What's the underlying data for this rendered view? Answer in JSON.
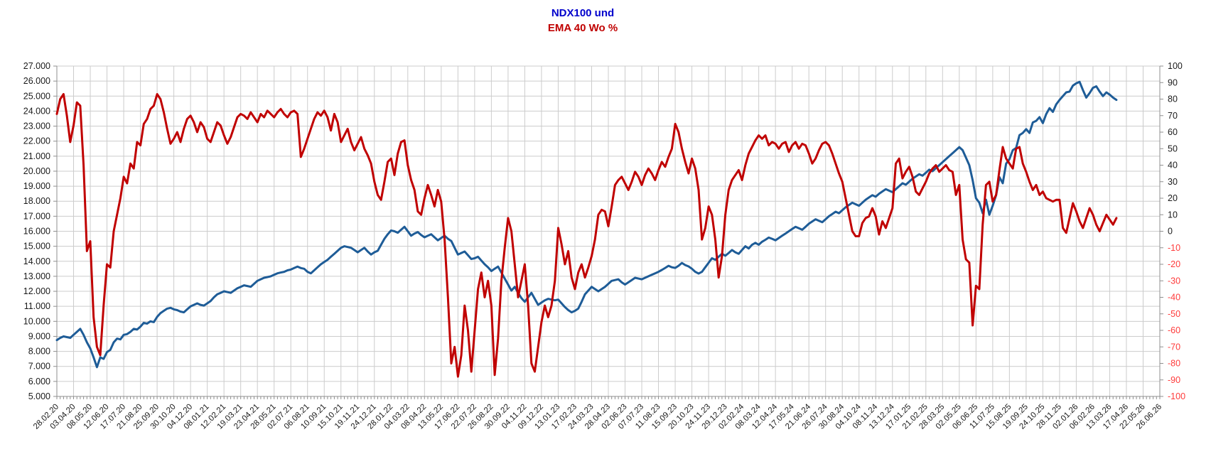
{
  "title": {
    "line1": "NDX100 und",
    "line2": "EMA 40 Wo %"
  },
  "colors": {
    "title_line1": "#0000cc",
    "title_line2": "#c00000",
    "ndx_line": "#1e5c97",
    "ema_line": "#c00000",
    "gridline": "#cccccc",
    "axis_line": "#8f8f8f",
    "tick_label": "#1a1a1a",
    "negative_tick_label": "#ff3b3b",
    "background": "#ffffff"
  },
  "chart_data": {
    "type": "line",
    "title": "NDX100 und EMA 40 Wo %",
    "grid": true,
    "legend": "none",
    "total_weeks": 330,
    "weeks_per_label": 5,
    "left_axis": {
      "min": 5000,
      "max": 27000,
      "step": 1000,
      "labels": [
        "27.000",
        "26.000",
        "25.000",
        "24.000",
        "23.000",
        "22.000",
        "21.000",
        "20.000",
        "19.000",
        "18.000",
        "17.000",
        "16.000",
        "15.000",
        "14.000",
        "13.000",
        "12.000",
        "11.000",
        "10.000",
        "9.000",
        "8.000",
        "7.000",
        "6.000",
        "5.000"
      ]
    },
    "right_axis": {
      "min": -100,
      "max": 100,
      "step": 10,
      "labels": [
        "100",
        "90",
        "80",
        "70",
        "60",
        "50",
        "40",
        "30",
        "20",
        "10",
        "0",
        "-10",
        "-20",
        "-30",
        "-40",
        "-50",
        "-60",
        "-70",
        "-80",
        "-90",
        "-100"
      ]
    },
    "x_tick_labels": [
      "28.02.20",
      "03.04.20",
      "08.05.20",
      "12.06.20",
      "17.07.20",
      "21.08.20",
      "25.09.20",
      "30.10.20",
      "04.12.20",
      "08.01.21",
      "12.02.21",
      "19.03.21",
      "23.04.21",
      "28.05.21",
      "02.07.21",
      "06.08.21",
      "10.09.21",
      "15.10.21",
      "19.11.21",
      "24.12.21",
      "28.01.22",
      "04.03.22",
      "08.04.22",
      "13.05.22",
      "17.06.22",
      "22.07.22",
      "26.08.22",
      "30.09.22",
      "04.11.22",
      "09.12.22",
      "13.01.23",
      "17.02.23",
      "24.03.23",
      "28.04.23",
      "02.06.23",
      "07.07.23",
      "11.08.23",
      "15.09.23",
      "20.10.23",
      "24.11.23",
      "29.12.23",
      "02.02.24",
      "08.03.24",
      "12.04.24",
      "17.05.24",
      "21.06.24",
      "26.07.24",
      "30.08.24",
      "04.10.24",
      "08.11.24",
      "13.12.24",
      "17.01.25",
      "21.02.25",
      "28.03.25",
      "02.05.25",
      "06.06.25",
      "11.07.25",
      "15.08.25",
      "19.09.25",
      "24.10.25",
      "28.11.25",
      "02.01.26",
      "06.02.26",
      "13.03.26",
      "17.04.26",
      "22.05.26",
      "26.06.26"
    ],
    "series": [
      {
        "name": "NDX100",
        "axis": "left",
        "color": "#1e5c97",
        "stroke_width": 3,
        "values": [
          8750,
          8900,
          9000,
          8950,
          8900,
          9100,
          9300,
          9500,
          9100,
          8600,
          8200,
          7600,
          6950,
          7600,
          7500,
          7950,
          8100,
          8600,
          8850,
          8800,
          9100,
          9150,
          9300,
          9500,
          9450,
          9650,
          9900,
          9850,
          10000,
          9950,
          10300,
          10550,
          10700,
          10850,
          10900,
          10800,
          10750,
          10650,
          10600,
          10800,
          11000,
          11100,
          11200,
          11100,
          11050,
          11200,
          11350,
          11600,
          11800,
          11900,
          12000,
          11950,
          11900,
          12050,
          12200,
          12300,
          12400,
          12350,
          12300,
          12500,
          12700,
          12800,
          12900,
          12950,
          13000,
          13100,
          13200,
          13250,
          13300,
          13400,
          13450,
          13550,
          13650,
          13550,
          13500,
          13300,
          13200,
          13400,
          13600,
          13800,
          13950,
          14100,
          14300,
          14500,
          14700,
          14900,
          15000,
          14950,
          14900,
          14750,
          14600,
          14750,
          14900,
          14650,
          14450,
          14600,
          14700,
          15100,
          15500,
          15800,
          16050,
          16000,
          15900,
          16100,
          16300,
          16000,
          15700,
          15850,
          15950,
          15750,
          15600,
          15700,
          15800,
          15600,
          15400,
          15550,
          15700,
          15500,
          15350,
          14900,
          14450,
          14550,
          14650,
          14400,
          14150,
          14200,
          14300,
          14050,
          13800,
          13600,
          13350,
          13500,
          13650,
          13250,
          12850,
          12450,
          12050,
          12300,
          11900,
          11550,
          11300,
          11600,
          11900,
          11500,
          11100,
          11250,
          11400,
          11500,
          11450,
          11400,
          11450,
          11200,
          10950,
          10750,
          10600,
          10700,
          10850,
          11300,
          11800,
          12050,
          12300,
          12150,
          12000,
          12150,
          12300,
          12500,
          12700,
          12750,
          12800,
          12600,
          12450,
          12600,
          12750,
          12900,
          12850,
          12800,
          12900,
          13000,
          13100,
          13200,
          13300,
          13420,
          13560,
          13700,
          13600,
          13560,
          13700,
          13890,
          13750,
          13660,
          13500,
          13300,
          13180,
          13300,
          13600,
          13900,
          14200,
          14100,
          14300,
          14500,
          14370,
          14550,
          14750,
          14600,
          14500,
          14750,
          15000,
          14850,
          15100,
          15230,
          15100,
          15300,
          15430,
          15580,
          15500,
          15400,
          15550,
          15700,
          15850,
          16000,
          16150,
          16300,
          16200,
          16100,
          16300,
          16500,
          16650,
          16800,
          16700,
          16600,
          16800,
          17000,
          17150,
          17300,
          17200,
          17400,
          17600,
          17750,
          17900,
          17800,
          17700,
          17900,
          18100,
          18250,
          18400,
          18300,
          18500,
          18650,
          18800,
          18700,
          18600,
          18800,
          19000,
          19200,
          19100,
          19300,
          19500,
          19650,
          19800,
          19700,
          19900,
          20100,
          20000,
          20200,
          20400,
          20600,
          20800,
          21000,
          21200,
          21400,
          21600,
          21400,
          20900,
          20400,
          19400,
          18200,
          17900,
          17200,
          18100,
          17100,
          17700,
          18400,
          19600,
          19200,
          20500,
          20800,
          21400,
          21550,
          22400,
          22550,
          22800,
          22550,
          23250,
          23350,
          23600,
          23200,
          23800,
          24200,
          23950,
          24450,
          24750,
          25000,
          25250,
          25300,
          25700,
          25850,
          25950,
          25400,
          24900,
          25200,
          25550,
          25650,
          25300,
          25000,
          25250,
          25100,
          24900,
          24750
        ]
      },
      {
        "name": "EMA 40 Wo %",
        "axis": "right",
        "color": "#c00000",
        "stroke_width": 3,
        "values": [
          71,
          80,
          83,
          70,
          54,
          64,
          78,
          76,
          40,
          -12,
          -6,
          -52,
          -70,
          -75,
          -45,
          -20,
          -22,
          0,
          10,
          20,
          33,
          29,
          41,
          38,
          54,
          52,
          65,
          68,
          74,
          76,
          83,
          80,
          72,
          62,
          53,
          56,
          60,
          54,
          62,
          68,
          70,
          66,
          60,
          66,
          63,
          56,
          54,
          60,
          66,
          64,
          58,
          53,
          57,
          63,
          69,
          71,
          70,
          68,
          72,
          69,
          66,
          71,
          69,
          73,
          71,
          69,
          72,
          74,
          71,
          69,
          72,
          73,
          71,
          45,
          50,
          56,
          62,
          68,
          72,
          70,
          73,
          69,
          61,
          71,
          66,
          54,
          58,
          62,
          54,
          49,
          53,
          57,
          50,
          46,
          41,
          30,
          22,
          19,
          30,
          42,
          44,
          34,
          47,
          54,
          55,
          40,
          31,
          25,
          12,
          10,
          20,
          28,
          22,
          15,
          25,
          18,
          -5,
          -40,
          -80,
          -70,
          -88,
          -75,
          -45,
          -60,
          -85,
          -60,
          -35,
          -25,
          -40,
          -30,
          -45,
          -87,
          -65,
          -30,
          -10,
          8,
          0,
          -20,
          -40,
          -30,
          -20,
          -45,
          -80,
          -85,
          -70,
          -55,
          -45,
          -52,
          -45,
          -30,
          2,
          -8,
          -20,
          -12,
          -28,
          -35,
          -25,
          -20,
          -28,
          -22,
          -15,
          -5,
          10,
          13,
          12,
          3,
          15,
          28,
          31,
          33,
          29,
          25,
          30,
          36,
          33,
          28,
          34,
          38,
          35,
          31,
          37,
          42,
          39,
          45,
          50,
          65,
          60,
          50,
          42,
          35,
          44,
          38,
          25,
          -5,
          2,
          15,
          10,
          -5,
          -28,
          -15,
          10,
          25,
          31,
          34,
          37,
          31,
          40,
          47,
          51,
          55,
          58,
          56,
          58,
          52,
          54,
          53,
          50,
          53,
          54,
          48,
          52,
          54,
          50,
          53,
          52,
          47,
          41,
          44,
          49,
          53,
          54,
          52,
          47,
          41,
          35,
          30,
          20,
          10,
          0,
          -3,
          -3,
          5,
          8,
          9,
          14,
          9,
          -2,
          6,
          2,
          8,
          14,
          41,
          44,
          32,
          36,
          39,
          33,
          24,
          22,
          26,
          30,
          35,
          38,
          40,
          36,
          38,
          40,
          37,
          36,
          22,
          28,
          -5,
          -17,
          -19,
          -57,
          -33,
          -35,
          4,
          28,
          30,
          18,
          22,
          37,
          51,
          44,
          41,
          38,
          50,
          51,
          41,
          36,
          30,
          25,
          28,
          22,
          24,
          20,
          19,
          18,
          19,
          19,
          2,
          -1,
          8,
          17,
          12,
          6,
          2,
          8,
          14,
          10,
          4,
          0,
          5,
          10,
          7,
          4,
          8
        ]
      }
    ]
  }
}
